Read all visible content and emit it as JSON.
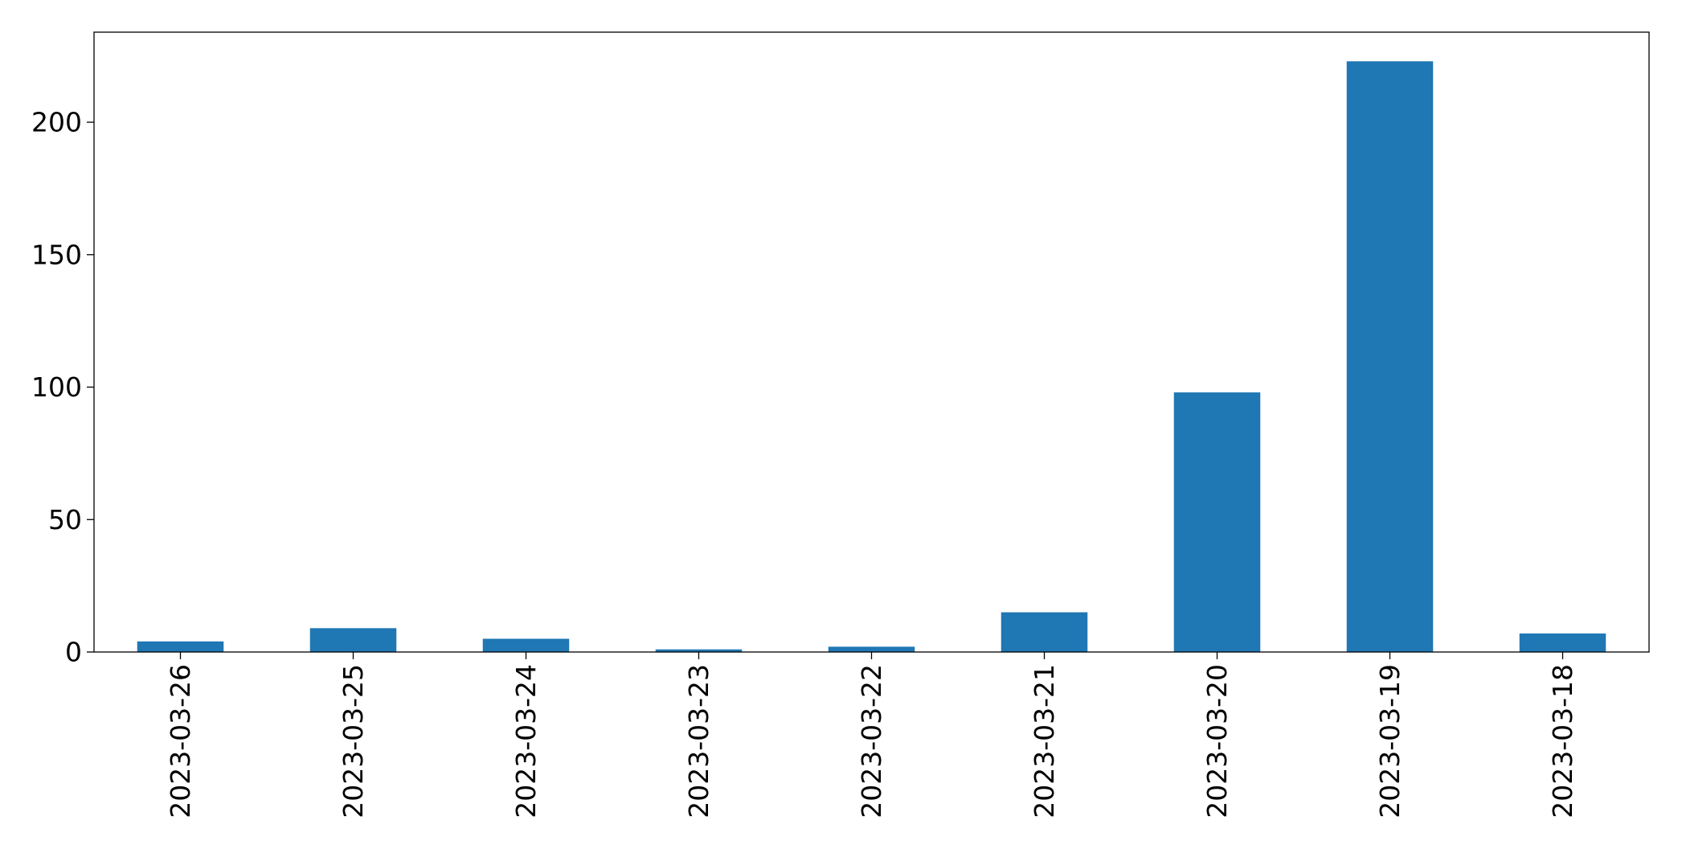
{
  "chart_data": {
    "type": "bar",
    "categories": [
      "2023-03-26",
      "2023-03-25",
      "2023-03-24",
      "2023-03-23",
      "2023-03-22",
      "2023-03-21",
      "2023-03-20",
      "2023-03-19",
      "2023-03-18"
    ],
    "values": [
      4,
      9,
      5,
      1,
      2,
      15,
      98,
      223,
      7
    ],
    "title": "",
    "xlabel": "",
    "ylabel": "",
    "ylim": [
      0,
      234
    ],
    "yticks": [
      0,
      50,
      100,
      150,
      200
    ],
    "grid": false,
    "bar_color": "#1f77b4"
  }
}
